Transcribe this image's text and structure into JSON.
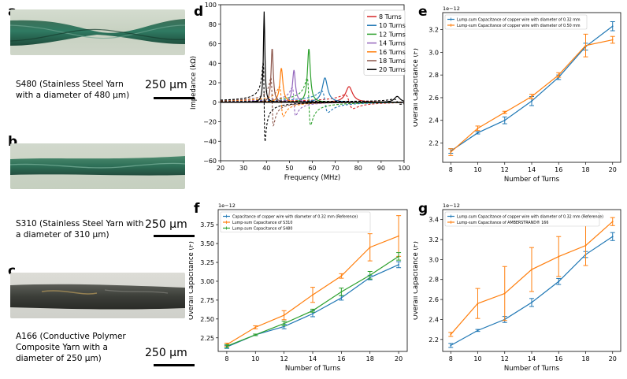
{
  "panels": {
    "a": {
      "letter": "a",
      "caption": [
        "S480 (Stainless Steel Yarn",
        "with a diameter of 480 µm)"
      ],
      "scale": "250 µm"
    },
    "b": {
      "letter": "b",
      "caption": [
        "S310 (Stainless Steel Yarn with",
        "a diameter of 310 µm)"
      ],
      "scale": "250 µm"
    },
    "c": {
      "letter": "c",
      "caption": [
        "A166 (Conductive Polymer",
        "Composite Yarn with a",
        "diameter of 250 µm)"
      ],
      "scale": "250 µm"
    },
    "d": {
      "letter": "d"
    },
    "e": {
      "letter": "e"
    },
    "f": {
      "letter": "f"
    },
    "g": {
      "letter": "g"
    }
  },
  "colors": {
    "blue": "#1f77b4",
    "orange": "#ff7f0e",
    "green": "#2ca02c",
    "red": "#d62728",
    "purple": "#9467bd",
    "brown": "#8c564b",
    "black": "#000000"
  },
  "chart_data": [
    {
      "id": "d",
      "type": "line",
      "title": "",
      "xlabel": "Frequency (MHz)",
      "ylabel": "Impedance (kΩ)",
      "xlim": [
        20,
        100
      ],
      "ylim": [
        -60,
        100
      ],
      "xticks": [
        20,
        30,
        40,
        50,
        60,
        70,
        80,
        90,
        100
      ],
      "yticks": [
        -60,
        -40,
        -20,
        0,
        20,
        40,
        60,
        80,
        100
      ],
      "legend_position": "top-right",
      "series": [
        {
          "name": "8 Turns",
          "color": "#d62728",
          "f0": 76,
          "peak": 16,
          "width": 1.8
        },
        {
          "name": "10 Turns",
          "color": "#1f77b4",
          "f0": 65.5,
          "peak": 25,
          "width": 1.4
        },
        {
          "name": "12 Turns",
          "color": "#2ca02c",
          "f0": 58.5,
          "peak": 55,
          "width": 0.75
        },
        {
          "name": "14 Turns",
          "color": "#9467bd",
          "f0": 52,
          "peak": 33,
          "width": 0.75
        },
        {
          "name": "16 Turns",
          "color": "#ff7f0e",
          "f0": 46.5,
          "peak": 35,
          "width": 0.8
        },
        {
          "name": "18 Turns",
          "color": "#8c564b",
          "f0": 42.5,
          "peak": 56,
          "width": 0.55
        },
        {
          "name": "20 Turns",
          "color": "#000000",
          "f0": 39,
          "peak": 93,
          "width": 0.38
        }
      ],
      "extra_peak": {
        "f0": 97,
        "peak": 6,
        "width": 1.5,
        "color": "#000000"
      }
    },
    {
      "id": "e",
      "type": "line",
      "exponent_label": "1e−12",
      "xlabel": "Number of Turns",
      "ylabel": "Overall Capacitance (F)",
      "xlim": [
        7.4,
        20.6
      ],
      "ylim": [
        2.03,
        3.35
      ],
      "xticks": [
        8,
        10,
        12,
        14,
        16,
        18,
        20
      ],
      "yticks": [
        2.2,
        2.4,
        2.6,
        2.8,
        3.0,
        3.2
      ],
      "legend_position": "top-left",
      "categories": [
        8,
        10,
        12,
        14,
        16,
        18,
        20
      ],
      "series": [
        {
          "name": "Lump-sum Capacitance of copper wire with diameter of 0.32 mm",
          "color": "#1f77b4",
          "values": [
            2.13,
            2.29,
            2.4,
            2.57,
            2.78,
            3.05,
            3.23
          ],
          "errors": [
            0.02,
            0.01,
            0.03,
            0.04,
            0.02,
            0.03,
            0.04
          ]
        },
        {
          "name": "Lump-sum Capacitance of copper wire with diameter of 0.50 mm",
          "color": "#ff7f0e",
          "values": [
            2.12,
            2.33,
            2.47,
            2.61,
            2.8,
            3.06,
            3.11
          ],
          "errors": [
            0.03,
            0.02,
            0.01,
            0.02,
            0.02,
            0.1,
            0.03
          ]
        }
      ]
    },
    {
      "id": "f",
      "type": "line",
      "exponent_label": "1e−12",
      "xlabel": "Number of Turns",
      "ylabel": "Overall Capacitance (F)",
      "xlim": [
        7.4,
        20.6
      ],
      "ylim": [
        2.07,
        3.95
      ],
      "xticks": [
        8,
        10,
        12,
        14,
        16,
        18,
        20
      ],
      "yticks": [
        2.25,
        2.5,
        2.75,
        3.0,
        3.25,
        3.5,
        3.75
      ],
      "legend_position": "top-left",
      "categories": [
        8,
        10,
        12,
        14,
        16,
        18,
        20
      ],
      "series": [
        {
          "name": "Capacitance of copper wire with diameter of 0.32 mm (Reference)",
          "color": "#1f77b4",
          "values": [
            2.13,
            2.29,
            2.4,
            2.57,
            2.78,
            3.05,
            3.22
          ],
          "errors": [
            0.02,
            0.01,
            0.03,
            0.04,
            0.03,
            0.03,
            0.04
          ]
        },
        {
          "name": "Lump-sum Capacitance of S310",
          "color": "#ff7f0e",
          "values": [
            2.16,
            2.39,
            2.55,
            2.82,
            3.07,
            3.45,
            3.6
          ],
          "errors": [
            0.02,
            0.02,
            0.06,
            0.1,
            0.03,
            0.18,
            0.27
          ]
        },
        {
          "name": "Lump-sum Capacitance of S480",
          "color": "#2ca02c",
          "values": [
            2.14,
            2.29,
            2.44,
            2.61,
            2.86,
            3.08,
            3.33
          ],
          "errors": [
            0.02,
            0.01,
            0.03,
            0.02,
            0.05,
            0.05,
            0.05
          ]
        }
      ]
    },
    {
      "id": "g",
      "type": "line",
      "exponent_label": "1e−12",
      "xlabel": "Number of Turns",
      "ylabel": "Overall Capacitance (F)",
      "xlim": [
        7.4,
        20.6
      ],
      "ylim": [
        2.08,
        3.5
      ],
      "xticks": [
        8,
        10,
        12,
        14,
        16,
        18,
        20
      ],
      "yticks": [
        2.2,
        2.4,
        2.6,
        2.8,
        3.0,
        3.2,
        3.4
      ],
      "legend_position": "top-left",
      "categories": [
        8,
        10,
        12,
        14,
        16,
        18,
        20
      ],
      "series": [
        {
          "name": "Lump-sum Capacitance of copper wire with diameter of 0.32 mm (Reference)",
          "color": "#1f77b4",
          "values": [
            2.14,
            2.29,
            2.4,
            2.57,
            2.78,
            3.05,
            3.23
          ],
          "errors": [
            0.02,
            0.01,
            0.03,
            0.04,
            0.03,
            0.03,
            0.04
          ]
        },
        {
          "name": "Lump-sum Capacitance of AMBERSTRAND® 166",
          "color": "#ff7f0e",
          "values": [
            2.25,
            2.56,
            2.66,
            2.9,
            3.03,
            3.14,
            3.38
          ],
          "errors": [
            0.02,
            0.15,
            0.27,
            0.22,
            0.2,
            0.2,
            0.04
          ]
        }
      ]
    }
  ]
}
